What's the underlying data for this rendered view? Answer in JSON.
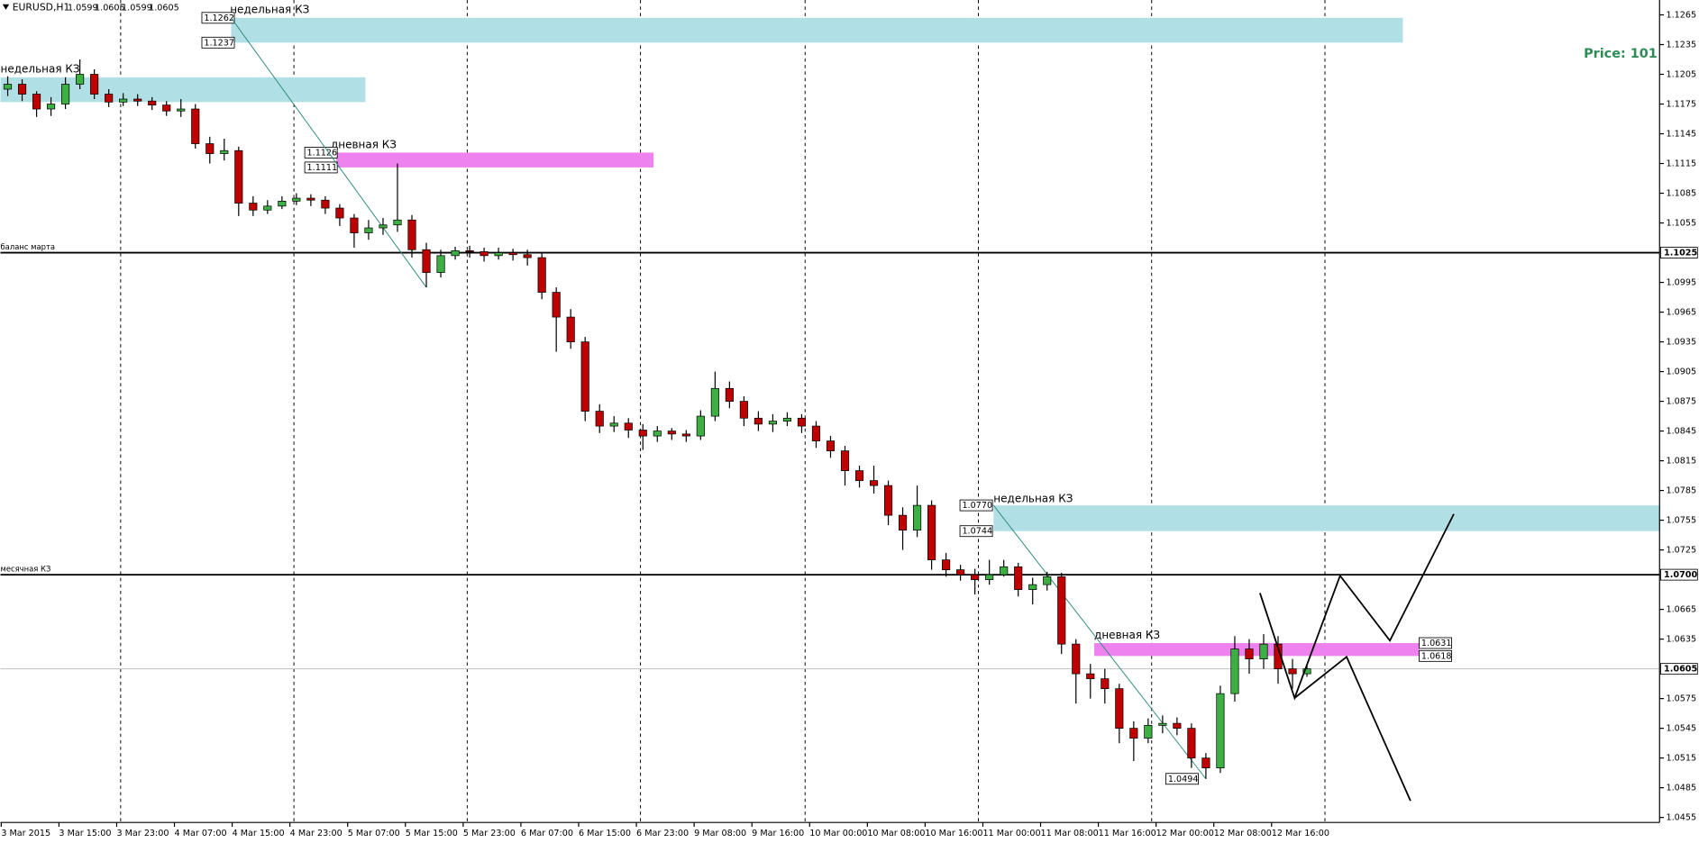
{
  "chart_data": {
    "type": "candlestick",
    "symbol": "EURUSD,H1",
    "last_bar": [
      1.0599,
      1.0605,
      1.0599,
      1.0605
    ],
    "indicator_label": "Price: 101",
    "up_color": "#3cb043",
    "down_color": "#c00000",
    "categories": [
      "3 Mar 2015",
      null,
      null,
      null,
      "3 Mar 15:00",
      null,
      null,
      null,
      "3 Mar 23:00",
      null,
      null,
      null,
      "4 Mar 07:00",
      null,
      null,
      null,
      "4 Mar 15:00",
      null,
      null,
      null,
      "4 Mar 23:00",
      null,
      null,
      null,
      "5 Mar 07:00",
      null,
      null,
      null,
      "5 Mar 15:00",
      null,
      null,
      null,
      "5 Mar 23:00",
      null,
      null,
      null,
      "6 Mar 07:00",
      null,
      null,
      null,
      "6 Mar 15:00",
      null,
      null,
      null,
      "6 Mar 23:00",
      null,
      null,
      null,
      "9 Mar 08:00",
      null,
      null,
      null,
      "9 Mar 16:00",
      null,
      null,
      null,
      "10 Mar 00:00",
      null,
      null,
      null,
      "10 Mar 08:00",
      null,
      null,
      null,
      "10 Mar 16:00",
      null,
      null,
      null,
      "11 Mar 00:00",
      null,
      null,
      null,
      "11 Mar 08:00",
      null,
      null,
      null,
      "11 Mar 16:00",
      null,
      null,
      null,
      "12 Mar 00:00",
      null,
      null,
      null,
      "12 Mar 08:00",
      null,
      null,
      null,
      "12 Mar 16:00",
      null,
      null
    ],
    "open": [
      1.119,
      1.1195,
      1.1185,
      1.117,
      1.1175,
      1.1195,
      1.1205,
      1.1185,
      1.1177,
      1.118,
      1.1178,
      1.1174,
      1.1168,
      1.117,
      1.1135,
      1.1125,
      1.1128,
      1.1075,
      1.1068,
      1.1072,
      1.1077,
      1.108,
      1.1078,
      1.107,
      1.106,
      1.1045,
      1.105,
      1.1053,
      1.1058,
      1.1028,
      1.1005,
      1.1022,
      1.1027,
      1.1026,
      1.1022,
      1.1025,
      1.1023,
      1.102,
      1.0985,
      1.096,
      1.0935,
      1.0865,
      1.085,
      1.0853,
      1.0846,
      1.084,
      1.0845,
      1.0842,
      1.084,
      1.086,
      1.0888,
      1.0875,
      1.0858,
      1.0852,
      1.0855,
      1.0858,
      1.085,
      1.0835,
      1.0825,
      1.0805,
      1.0795,
      1.079,
      1.076,
      1.0745,
      1.077,
      1.0715,
      1.0705,
      1.07,
      1.0695,
      1.07,
      1.0708,
      1.0685,
      1.069,
      1.0698,
      1.063,
      1.06,
      1.0595,
      1.0585,
      1.0545,
      1.0535,
      1.0548,
      1.055,
      1.0545,
      1.0515,
      1.0505,
      1.058,
      1.0625,
      1.0615,
      1.063,
      1.0605,
      1.06
    ],
    "high": [
      1.1203,
      1.12,
      1.1188,
      1.1182,
      1.1202,
      1.122,
      1.121,
      1.119,
      1.1186,
      1.1185,
      1.1182,
      1.1178,
      1.118,
      1.1175,
      1.1142,
      1.114,
      1.1132,
      1.1082,
      1.1078,
      1.1082,
      1.1085,
      1.1084,
      1.1082,
      1.1074,
      1.1064,
      1.1058,
      1.106,
      1.1115,
      1.1063,
      1.1035,
      1.1028,
      1.1031,
      1.1032,
      1.103,
      1.103,
      1.1029,
      1.1028,
      1.1025,
      1.099,
      1.0968,
      1.094,
      1.0872,
      1.086,
      1.0858,
      1.0852,
      1.085,
      1.0848,
      1.0846,
      1.0866,
      1.0905,
      1.0895,
      1.088,
      1.0865,
      1.0862,
      1.0864,
      1.0862,
      1.0855,
      1.084,
      1.083,
      1.081,
      1.081,
      1.0795,
      1.0768,
      1.079,
      1.0775,
      1.0722,
      1.071,
      1.0706,
      1.0715,
      1.0715,
      1.0712,
      1.0697,
      1.0703,
      1.0702,
      1.0635,
      1.061,
      1.0605,
      1.059,
      1.0552,
      1.0555,
      1.0558,
      1.0556,
      1.055,
      1.052,
      1.0588,
      1.0638,
      1.0635,
      1.064,
      1.0638,
      1.0615,
      1.061
    ],
    "low": [
      1.1183,
      1.1178,
      1.1162,
      1.1163,
      1.117,
      1.119,
      1.118,
      1.1172,
      1.1173,
      1.1173,
      1.1169,
      1.1163,
      1.1162,
      1.113,
      1.1115,
      1.1118,
      1.1062,
      1.1062,
      1.1064,
      1.1069,
      1.1073,
      1.1072,
      1.1064,
      1.1052,
      1.103,
      1.1038,
      1.1043,
      1.1046,
      1.102,
      1.099,
      1.1,
      1.1018,
      1.102,
      1.1016,
      1.1018,
      1.1017,
      1.1012,
      1.0978,
      1.0925,
      1.0928,
      1.0855,
      1.0843,
      1.0844,
      1.0838,
      1.0826,
      1.0834,
      1.0836,
      1.0834,
      1.0836,
      1.0855,
      1.0868,
      1.085,
      1.0845,
      1.0844,
      1.085,
      1.0843,
      1.0828,
      1.0818,
      1.079,
      1.0788,
      1.0782,
      1.075,
      1.0725,
      1.0738,
      1.0705,
      1.0698,
      1.0694,
      1.068,
      1.069,
      1.0698,
      1.0678,
      1.067,
      1.0684,
      1.062,
      1.057,
      1.0575,
      1.057,
      1.053,
      1.0512,
      1.053,
      1.054,
      1.0538,
      1.0505,
      1.0494,
      1.05,
      1.0572,
      1.06,
      1.0605,
      1.059,
      1.0585,
      1.0597
    ],
    "close": [
      1.1195,
      1.1185,
      1.117,
      1.1175,
      1.1195,
      1.1205,
      1.1185,
      1.1177,
      1.118,
      1.1178,
      1.1174,
      1.1168,
      1.117,
      1.1135,
      1.1125,
      1.1128,
      1.1075,
      1.1068,
      1.1072,
      1.1077,
      1.108,
      1.1078,
      1.107,
      1.106,
      1.1045,
      1.105,
      1.1053,
      1.1058,
      1.1028,
      1.1005,
      1.1022,
      1.1027,
      1.1026,
      1.1022,
      1.1025,
      1.1023,
      1.102,
      1.0985,
      1.096,
      1.0935,
      1.0865,
      1.085,
      1.0853,
      1.0846,
      1.084,
      1.0845,
      1.0842,
      1.084,
      1.086,
      1.0888,
      1.0875,
      1.0858,
      1.0852,
      1.0855,
      1.0858,
      1.085,
      1.0835,
      1.0825,
      1.0805,
      1.0795,
      1.079,
      1.076,
      1.0745,
      1.077,
      1.0715,
      1.0705,
      1.07,
      1.0695,
      1.07,
      1.0708,
      1.0685,
      1.069,
      1.0698,
      1.063,
      1.06,
      1.0595,
      1.0585,
      1.0545,
      1.0535,
      1.0548,
      1.055,
      1.0545,
      1.0515,
      1.0505,
      1.058,
      1.0625,
      1.0615,
      1.063,
      1.0605,
      1.06,
      1.0605
    ],
    "ylim": [
      1.045,
      1.128
    ],
    "yticks": [
      1.1265,
      1.1235,
      1.1205,
      1.1175,
      1.1145,
      1.1115,
      1.1085,
      1.1055,
      1.0995,
      1.0965,
      1.0935,
      1.0905,
      1.0875,
      1.0845,
      1.0815,
      1.0785,
      1.0755,
      1.0725,
      1.0665,
      1.0635,
      1.0575,
      1.0545,
      1.0515,
      1.0485,
      1.0455
    ],
    "hlines": [
      {
        "name": "баланс марта",
        "value": 1.1025
      },
      {
        "name": "месячная КЗ",
        "value": 1.07,
        "label": "1.0700"
      }
    ],
    "zones": [
      {
        "label": "недельная КЗ",
        "top": 1.1262,
        "bottom": 1.1237,
        "color": "#b0e0e6"
      },
      {
        "label": "недельная КЗ",
        "top": 1.1202,
        "bottom": 1.1177,
        "color": "#b0e0e6"
      },
      {
        "label": "дневная КЗ",
        "top": 1.1126,
        "bottom": 1.1111,
        "color": "#ee82ee"
      },
      {
        "label": "недельная КЗ",
        "top": {
          "value": 1.077,
          "label": "1.0770"
        },
        "bottom": 1.0744,
        "color": "#b0e0e6"
      },
      {
        "label": "дневная КЗ",
        "top": 1.0631,
        "bottom": 1.0618,
        "color": "#ee82ee"
      }
    ]
  }
}
